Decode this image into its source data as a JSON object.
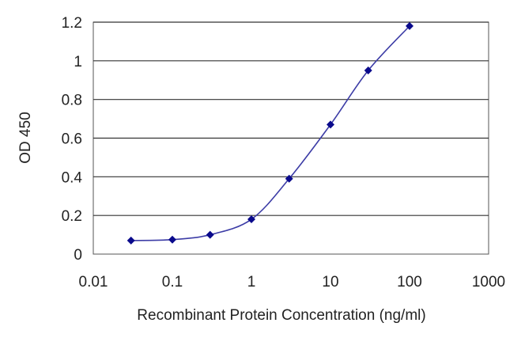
{
  "chart_data": {
    "type": "scatter",
    "title": "",
    "xlabel": "Recombinant Protein Concentration (ng/ml)",
    "ylabel": "OD 450",
    "xscale": "log",
    "xlim": [
      0.01,
      1000
    ],
    "ylim": [
      0,
      1.2
    ],
    "xticks": [
      "0.01",
      "0.1",
      "1",
      "10",
      "100",
      "1000"
    ],
    "yticks": [
      "0",
      "0.2",
      "0.4",
      "0.6",
      "0.8",
      "1",
      "1.2"
    ],
    "grid": "horizontal",
    "legend": "none",
    "series": [
      {
        "x": [
          0.03,
          0.1,
          0.3,
          1,
          3,
          10,
          30,
          100
        ],
        "y": [
          0.07,
          0.075,
          0.1,
          0.18,
          0.39,
          0.67,
          0.95,
          1.18
        ],
        "fit": "sigmoid"
      }
    ],
    "colors": {
      "marker": "#0a0a8c",
      "line": "#3c3ca6",
      "grid": "#333333"
    }
  }
}
